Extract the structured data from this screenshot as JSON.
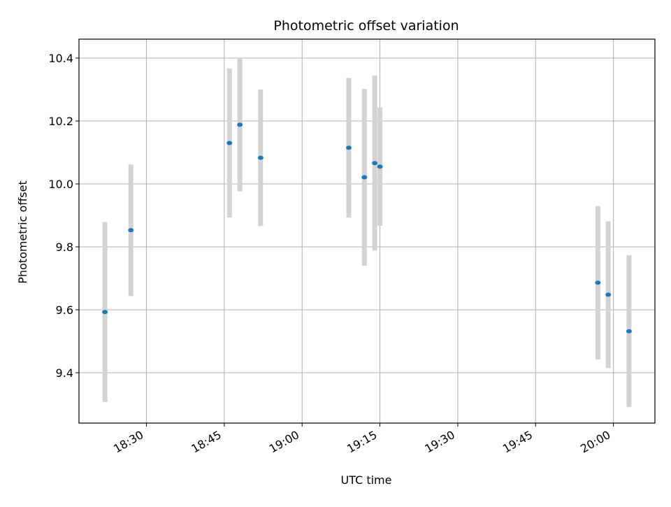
{
  "chart_data": {
    "type": "scatter",
    "title": "Photometric offset variation",
    "xlabel": "UTC time",
    "ylabel": "Photometric offset",
    "x_ticks": [
      "18:30",
      "18:45",
      "19:00",
      "19:15",
      "19:30",
      "19:45",
      "20:00"
    ],
    "y_ticks": [
      "9.4",
      "9.6",
      "9.8",
      "10.0",
      "10.2",
      "10.4"
    ],
    "xlim": [
      "18:17",
      "20:08"
    ],
    "ylim": [
      9.24,
      10.46
    ],
    "grid": true,
    "errorbars": true,
    "colors": {
      "marker": "#1f77b4",
      "errorbar": "#d3d3d3",
      "grid": "#b0b0b0"
    },
    "points": [
      {
        "x": "18:22",
        "y": 9.593,
        "err": 0.286
      },
      {
        "x": "18:27",
        "y": 9.853,
        "err": 0.209
      },
      {
        "x": "18:46",
        "y": 10.13,
        "err": 0.237
      },
      {
        "x": "18:48",
        "y": 10.188,
        "err": 0.212
      },
      {
        "x": "18:52",
        "y": 10.083,
        "err": 0.217
      },
      {
        "x": "19:09",
        "y": 10.115,
        "err": 0.222
      },
      {
        "x": "19:12",
        "y": 10.021,
        "err": 0.281
      },
      {
        "x": "19:14",
        "y": 10.066,
        "err": 0.278
      },
      {
        "x": "19:15",
        "y": 10.055,
        "err": 0.188
      },
      {
        "x": "19:57",
        "y": 9.686,
        "err": 0.244
      },
      {
        "x": "19:59",
        "y": 9.648,
        "err": 0.233
      },
      {
        "x": "20:03",
        "y": 9.532,
        "err": 0.241
      }
    ]
  }
}
